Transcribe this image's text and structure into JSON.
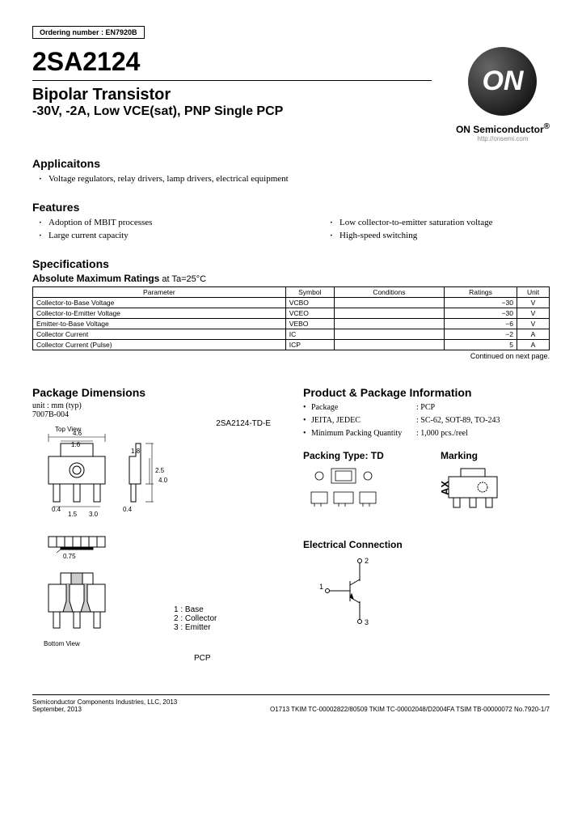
{
  "ordering_number_label": "Ordering number : EN7920B",
  "part_number": "2SA2124",
  "subtitle": "Bipolar Transistor",
  "sub_spec": "-30V, -2A, Low VCE(sat), PNP Single PCP",
  "brand": "ON Semiconductor",
  "brand_sup": "®",
  "brand_url": "http://onsemi.com",
  "logo_text": "ON",
  "applications_title": "Applicaitons",
  "applications": [
    "Voltage regulators, relay drivers, lamp drivers, electrical equipment"
  ],
  "features_title": "Features",
  "features_left": [
    "Adoption of MBIT processes",
    "Large current capacity"
  ],
  "features_right": [
    "Low collector-to-emitter saturation voltage",
    "High-speed switching"
  ],
  "specifications_title": "Specifications",
  "abs_max_title": "Absolute Maximum Ratings",
  "abs_max_cond": " at Ta=25°C",
  "spec_table": {
    "headers": [
      "Parameter",
      "Symbol",
      "Conditions",
      "Ratings",
      "Unit"
    ],
    "rows": [
      [
        "Collector-to-Base Voltage",
        "VCBO",
        "",
        "−30",
        "V"
      ],
      [
        "Collector-to-Emitter Voltage",
        "VCEO",
        "",
        "−30",
        "V"
      ],
      [
        "Emitter-to-Base Voltage",
        "VEBO",
        "",
        "−6",
        "V"
      ],
      [
        "Collector Current",
        "IC",
        "",
        "−2",
        "A"
      ],
      [
        "Collector Current (Pulse)",
        "ICP",
        "",
        "5",
        "A"
      ]
    ]
  },
  "continued": "Continued on next page.",
  "pkg_dim_title": "Package Dimensions",
  "pkg_unit": "unit : mm (typ)",
  "pkg_code": "7007B-004",
  "pkg_part_label": "2SA2124-TD-E",
  "top_view": "Top View",
  "bottom_view": "Bottom View",
  "pin_legend": [
    "1 : Base",
    "2 : Collector",
    "3 : Emitter"
  ],
  "pcp_label": "PCP",
  "dims": {
    "w_overall": "4.6",
    "w_inner": "1.6",
    "h_body": "2.5",
    "lead_h": "4.0",
    "lead_w": "0.4",
    "gap": "1.5",
    "pitch": "3.0",
    "tab_h": "1.8",
    "thick": "0.75"
  },
  "prod_info_title": "Product & Package Information",
  "prod_info": [
    {
      "label": "Package",
      "value": ": PCP"
    },
    {
      "label": "JEITA, JEDEC",
      "value": ": SC-62, SOT-89, TO-243"
    },
    {
      "label": "Minimum Packing Quantity",
      "value": ": 1,000 pcs./reel"
    }
  ],
  "packing_title": "Packing Type: TD",
  "marking_title": "Marking",
  "marking_text": "AX",
  "elec_title": "Electrical Connection",
  "elec_pins": {
    "p1": "1",
    "p2": "2",
    "p3": "3"
  },
  "footer_left": "Semiconductor Components Industries, LLC, 2013",
  "footer_date": "September, 2013",
  "footer_right": "O1713 TKIM TC-00002822/80509 TKIM TC-00002048/D2004FA TSIM TB-00000072 No.7920-1/7",
  "colors": {
    "line": "#000000",
    "text": "#000000",
    "muted": "#888888"
  }
}
